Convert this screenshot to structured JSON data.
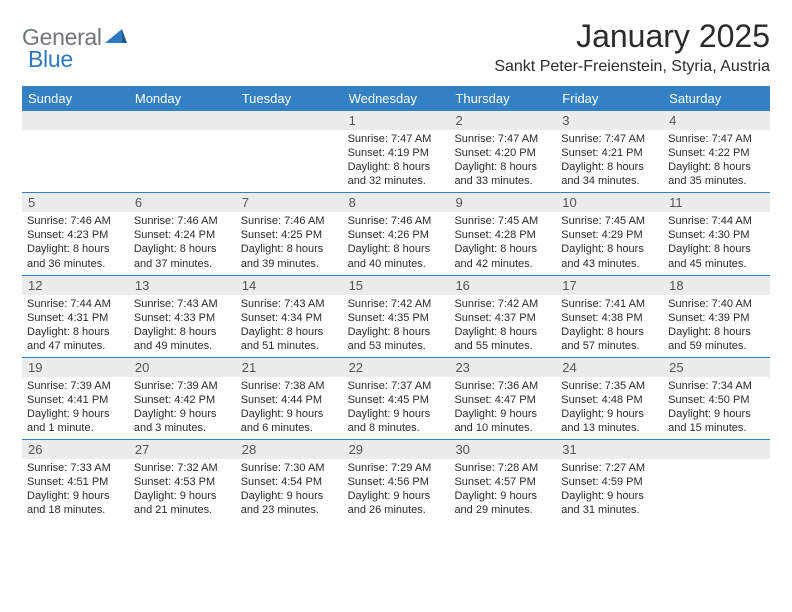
{
  "logo": {
    "word1": "General",
    "word2": "Blue"
  },
  "title": "January 2025",
  "location": "Sankt Peter-Freienstein, Styria, Austria",
  "colors": {
    "header_bg": "#3380c2",
    "header_text": "#ffffff",
    "daynum_bg": "#ececec",
    "daynum_text": "#555555",
    "body_text": "#2b2b2b",
    "logo_gray": "#6f7678",
    "logo_blue": "#2f78bf",
    "row_border": "#3380c2"
  },
  "fonts": {
    "title_pt": 32,
    "location_pt": 16,
    "header_pt": 13,
    "daynum_pt": 13,
    "body_pt": 11,
    "logo_pt": 23
  },
  "day_names": [
    "Sunday",
    "Monday",
    "Tuesday",
    "Wednesday",
    "Thursday",
    "Friday",
    "Saturday"
  ],
  "weeks": [
    [
      {
        "n": "",
        "sr": "",
        "ss": "",
        "dl": ""
      },
      {
        "n": "",
        "sr": "",
        "ss": "",
        "dl": ""
      },
      {
        "n": "",
        "sr": "",
        "ss": "",
        "dl": ""
      },
      {
        "n": "1",
        "sr": "Sunrise: 7:47 AM",
        "ss": "Sunset: 4:19 PM",
        "dl": "Daylight: 8 hours and 32 minutes."
      },
      {
        "n": "2",
        "sr": "Sunrise: 7:47 AM",
        "ss": "Sunset: 4:20 PM",
        "dl": "Daylight: 8 hours and 33 minutes."
      },
      {
        "n": "3",
        "sr": "Sunrise: 7:47 AM",
        "ss": "Sunset: 4:21 PM",
        "dl": "Daylight: 8 hours and 34 minutes."
      },
      {
        "n": "4",
        "sr": "Sunrise: 7:47 AM",
        "ss": "Sunset: 4:22 PM",
        "dl": "Daylight: 8 hours and 35 minutes."
      }
    ],
    [
      {
        "n": "5",
        "sr": "Sunrise: 7:46 AM",
        "ss": "Sunset: 4:23 PM",
        "dl": "Daylight: 8 hours and 36 minutes."
      },
      {
        "n": "6",
        "sr": "Sunrise: 7:46 AM",
        "ss": "Sunset: 4:24 PM",
        "dl": "Daylight: 8 hours and 37 minutes."
      },
      {
        "n": "7",
        "sr": "Sunrise: 7:46 AM",
        "ss": "Sunset: 4:25 PM",
        "dl": "Daylight: 8 hours and 39 minutes."
      },
      {
        "n": "8",
        "sr": "Sunrise: 7:46 AM",
        "ss": "Sunset: 4:26 PM",
        "dl": "Daylight: 8 hours and 40 minutes."
      },
      {
        "n": "9",
        "sr": "Sunrise: 7:45 AM",
        "ss": "Sunset: 4:28 PM",
        "dl": "Daylight: 8 hours and 42 minutes."
      },
      {
        "n": "10",
        "sr": "Sunrise: 7:45 AM",
        "ss": "Sunset: 4:29 PM",
        "dl": "Daylight: 8 hours and 43 minutes."
      },
      {
        "n": "11",
        "sr": "Sunrise: 7:44 AM",
        "ss": "Sunset: 4:30 PM",
        "dl": "Daylight: 8 hours and 45 minutes."
      }
    ],
    [
      {
        "n": "12",
        "sr": "Sunrise: 7:44 AM",
        "ss": "Sunset: 4:31 PM",
        "dl": "Daylight: 8 hours and 47 minutes."
      },
      {
        "n": "13",
        "sr": "Sunrise: 7:43 AM",
        "ss": "Sunset: 4:33 PM",
        "dl": "Daylight: 8 hours and 49 minutes."
      },
      {
        "n": "14",
        "sr": "Sunrise: 7:43 AM",
        "ss": "Sunset: 4:34 PM",
        "dl": "Daylight: 8 hours and 51 minutes."
      },
      {
        "n": "15",
        "sr": "Sunrise: 7:42 AM",
        "ss": "Sunset: 4:35 PM",
        "dl": "Daylight: 8 hours and 53 minutes."
      },
      {
        "n": "16",
        "sr": "Sunrise: 7:42 AM",
        "ss": "Sunset: 4:37 PM",
        "dl": "Daylight: 8 hours and 55 minutes."
      },
      {
        "n": "17",
        "sr": "Sunrise: 7:41 AM",
        "ss": "Sunset: 4:38 PM",
        "dl": "Daylight: 8 hours and 57 minutes."
      },
      {
        "n": "18",
        "sr": "Sunrise: 7:40 AM",
        "ss": "Sunset: 4:39 PM",
        "dl": "Daylight: 8 hours and 59 minutes."
      }
    ],
    [
      {
        "n": "19",
        "sr": "Sunrise: 7:39 AM",
        "ss": "Sunset: 4:41 PM",
        "dl": "Daylight: 9 hours and 1 minute."
      },
      {
        "n": "20",
        "sr": "Sunrise: 7:39 AM",
        "ss": "Sunset: 4:42 PM",
        "dl": "Daylight: 9 hours and 3 minutes."
      },
      {
        "n": "21",
        "sr": "Sunrise: 7:38 AM",
        "ss": "Sunset: 4:44 PM",
        "dl": "Daylight: 9 hours and 6 minutes."
      },
      {
        "n": "22",
        "sr": "Sunrise: 7:37 AM",
        "ss": "Sunset: 4:45 PM",
        "dl": "Daylight: 9 hours and 8 minutes."
      },
      {
        "n": "23",
        "sr": "Sunrise: 7:36 AM",
        "ss": "Sunset: 4:47 PM",
        "dl": "Daylight: 9 hours and 10 minutes."
      },
      {
        "n": "24",
        "sr": "Sunrise: 7:35 AM",
        "ss": "Sunset: 4:48 PM",
        "dl": "Daylight: 9 hours and 13 minutes."
      },
      {
        "n": "25",
        "sr": "Sunrise: 7:34 AM",
        "ss": "Sunset: 4:50 PM",
        "dl": "Daylight: 9 hours and 15 minutes."
      }
    ],
    [
      {
        "n": "26",
        "sr": "Sunrise: 7:33 AM",
        "ss": "Sunset: 4:51 PM",
        "dl": "Daylight: 9 hours and 18 minutes."
      },
      {
        "n": "27",
        "sr": "Sunrise: 7:32 AM",
        "ss": "Sunset: 4:53 PM",
        "dl": "Daylight: 9 hours and 21 minutes."
      },
      {
        "n": "28",
        "sr": "Sunrise: 7:30 AM",
        "ss": "Sunset: 4:54 PM",
        "dl": "Daylight: 9 hours and 23 minutes."
      },
      {
        "n": "29",
        "sr": "Sunrise: 7:29 AM",
        "ss": "Sunset: 4:56 PM",
        "dl": "Daylight: 9 hours and 26 minutes."
      },
      {
        "n": "30",
        "sr": "Sunrise: 7:28 AM",
        "ss": "Sunset: 4:57 PM",
        "dl": "Daylight: 9 hours and 29 minutes."
      },
      {
        "n": "31",
        "sr": "Sunrise: 7:27 AM",
        "ss": "Sunset: 4:59 PM",
        "dl": "Daylight: 9 hours and 31 minutes."
      },
      {
        "n": "",
        "sr": "",
        "ss": "",
        "dl": ""
      }
    ]
  ]
}
